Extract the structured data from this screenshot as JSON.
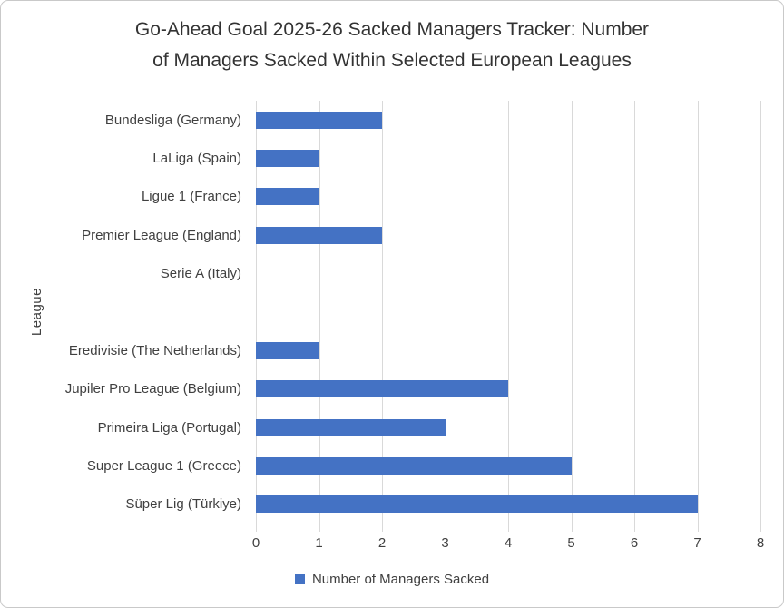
{
  "chart_data": {
    "type": "bar",
    "orientation": "horizontal",
    "title": "Go-Ahead Goal 2025-26 Sacked Managers Tracker: Number of Managers Sacked Within Selected European Leagues",
    "title_lines": [
      "Go-Ahead Goal 2025-26 Sacked Managers Tracker: Number",
      "of Managers Sacked Within Selected European Leagues"
    ],
    "xlabel": "",
    "ylabel": "League",
    "xlim": [
      0,
      8
    ],
    "x_ticks": [
      0,
      1,
      2,
      3,
      4,
      5,
      6,
      7,
      8
    ],
    "grid": true,
    "legend_position": "bottom",
    "legend_label": "Number of Managers Sacked",
    "categories": [
      "Bundesliga (Germany)",
      "LaLiga (Spain)",
      "Ligue 1 (France)",
      "Premier League (England)",
      "Serie A (Italy)",
      "",
      "Eredivisie (The Netherlands)",
      "Jupiler Pro League (Belgium)",
      "Primeira Liga (Portugal)",
      "Super League 1 (Greece)",
      "Süper Lig (Türkiye)"
    ],
    "values": [
      2,
      1,
      1,
      2,
      0,
      null,
      1,
      4,
      3,
      5,
      7
    ],
    "note": "blank category row between Serie A (Italy) and Eredivisie (The Netherlands) renders as an empty gap; Serie A has value 0 (no bar)",
    "bar_color": "#4472C4",
    "gridline_color": "#D9D9D9",
    "text_color": "#404040",
    "border_color": "#C9C9C9",
    "background_color": "#FFFFFF"
  }
}
